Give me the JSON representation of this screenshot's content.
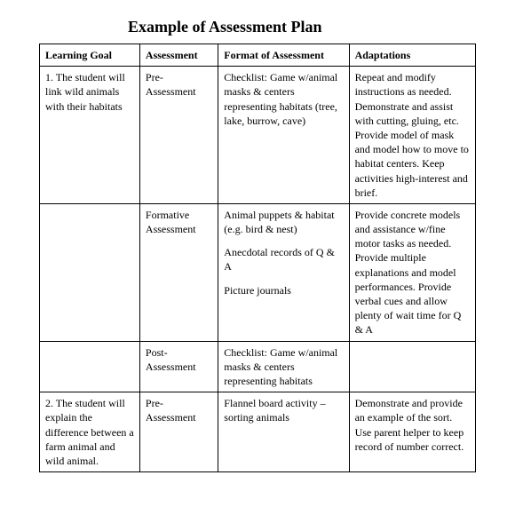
{
  "title": "Example of Assessment Plan",
  "columns": [
    "Learning Goal",
    "Assessment",
    "Format of Assessment",
    "Adaptations"
  ],
  "rows": [
    {
      "goal": "1. The student will link wild animals with their habitats",
      "assessment": "Pre-Assessment",
      "format": [
        "Checklist: Game w/animal masks & centers representing habitats (tree, lake, burrow, cave)"
      ],
      "adaptations": "Repeat and modify instructions as needed.  Demonstrate and assist with cutting, gluing, etc.  Provide model of mask and model how to move to habitat centers.  Keep activities high-interest and brief."
    },
    {
      "goal": "",
      "assessment": "Formative Assessment",
      "format": [
        "Animal puppets & habitat (e.g. bird & nest)",
        "Anecdotal records of Q & A",
        "Picture journals"
      ],
      "adaptations": "Provide concrete models and assistance w/fine motor tasks as needed.  Provide multiple explanations and model performances.  Provide verbal cues and allow plenty of wait time for Q & A"
    },
    {
      "goal": "",
      "assessment": "Post-Assessment",
      "format": [
        "Checklist: Game w/animal masks & centers representing habitats"
      ],
      "adaptations": ""
    },
    {
      "goal": "2. The student will explain the difference between a farm animal and wild animal.",
      "assessment": "Pre-Assessment",
      "format": [
        "Flannel board activity – sorting animals"
      ],
      "adaptations": "Demonstrate and provide an example of the sort.  Use parent helper to keep record of number correct."
    }
  ]
}
